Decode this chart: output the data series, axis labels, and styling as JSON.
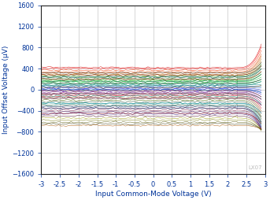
{
  "xlabel": "Input Common-Mode Voltage (V)",
  "ylabel": "Input Offset Voltage (µV)",
  "xlim": [
    -3,
    3
  ],
  "ylim": [
    -1600,
    1600
  ],
  "xticks": [
    -3,
    -2.5,
    -2,
    -1.5,
    -1,
    -0.5,
    0,
    0.5,
    1,
    1.5,
    2,
    2.5,
    3
  ],
  "yticks": [
    -1600,
    -1200,
    -800,
    -400,
    0,
    400,
    800,
    1200,
    1600
  ],
  "watermark": "LX07",
  "flat_start": -3.0,
  "flat_end": 2.25,
  "diverge_start": 2.25,
  "diverge_end": 2.9,
  "flat_values": [
    420,
    400,
    370,
    340,
    320,
    295,
    275,
    255,
    235,
    210,
    190,
    170,
    150,
    130,
    110,
    90,
    70,
    50,
    30,
    10,
    -10,
    -30,
    -50,
    -70,
    -95,
    -120,
    -145,
    -170,
    -200,
    -230,
    -260,
    -290,
    -320,
    -355,
    -390,
    -425,
    -460,
    -500,
    -540,
    -580,
    -620,
    -650,
    -680,
    -20,
    40,
    -120,
    80,
    160,
    -160,
    -350,
    200,
    -450,
    280,
    -260,
    0,
    240,
    -310,
    320,
    -80,
    120
  ],
  "end_values": [
    870,
    820,
    750,
    680,
    640,
    590,
    540,
    490,
    450,
    400,
    340,
    290,
    240,
    190,
    150,
    100,
    60,
    30,
    -10,
    -50,
    -90,
    -140,
    -190,
    -250,
    -300,
    -360,
    -410,
    -460,
    -520,
    -570,
    -620,
    -660,
    -700,
    -720,
    -750,
    -750,
    -760,
    -770,
    -760,
    -790,
    -760,
    -760,
    -750,
    -140,
    80,
    -280,
    160,
    300,
    -300,
    -620,
    350,
    -650,
    460,
    -450,
    -60,
    400,
    -520,
    520,
    -180,
    200
  ],
  "colors": [
    "#cc0000",
    "#ff0000",
    "#ee3300",
    "#dd4400",
    "#cc5500",
    "#bb6600",
    "#aa7700",
    "#228800",
    "#006600",
    "#007700",
    "#009900",
    "#00aa00",
    "#00bb22",
    "#00cc44",
    "#00aa66",
    "#008888",
    "#006699",
    "#0044aa",
    "#0022cc",
    "#0000ee",
    "#2200cc",
    "#440099",
    "#660077",
    "#880055",
    "#aa0033",
    "#cc0011",
    "#884400",
    "#664422",
    "#446600",
    "#224422",
    "#008866",
    "#006644",
    "#004488",
    "#002266",
    "#660033",
    "#440055",
    "#220077",
    "#440022",
    "#999900",
    "#777700",
    "#555500",
    "#333300",
    "#aa5500",
    "#884422",
    "#663300",
    "#009988",
    "#007766",
    "#005544",
    "#550055",
    "#330033",
    "#aa0000",
    "#880000",
    "#660000",
    "#0088aa",
    "#006688",
    "#004466",
    "#555555",
    "#333333",
    "#111111",
    "#000000"
  ]
}
